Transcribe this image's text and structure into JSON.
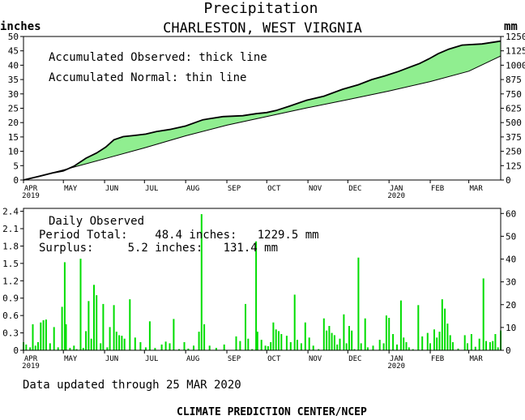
{
  "header": {
    "title": "Precipitation",
    "subtitle": "CHARLESTON, WEST VIRGNIA",
    "left_unit": "inches",
    "right_unit": "mm"
  },
  "top_panel": {
    "legend_line1": "Accumulated Observed: thick line",
    "legend_line2": "Accumulated Normal: thin line"
  },
  "bottom_panel": {
    "label_daily": "Daily Observed",
    "label_period": "Period Total:    48.4 inches:   1229.5 mm",
    "label_surplus": "Surplus:     5.2 inches:   131.4 mm"
  },
  "footer": {
    "updated": "Data updated through 25 MAR 2020",
    "credit": "CLIMATE PREDICTION CENTER/NCEP"
  },
  "colors": {
    "surplus_fill": "#90ee90",
    "deficit_fill": "#bc8f8f",
    "bars": "#00dd00",
    "axis": "#000000"
  },
  "chart_data": [
    {
      "type": "area",
      "name": "accumulated",
      "x_unit": "days since 2019-04-01",
      "ylim": [
        0,
        50
      ],
      "y_ticks": [
        0,
        5,
        10,
        15,
        20,
        25,
        30,
        35,
        40,
        45,
        50
      ],
      "y2_ticks": [
        0,
        125,
        250,
        375,
        500,
        625,
        750,
        875,
        1000,
        1125,
        1250
      ],
      "x_ticks": [
        "APR",
        "MAY",
        "JUN",
        "JUL",
        "AUG",
        "SEP",
        "OCT",
        "NOV",
        "DEC",
        "JAN",
        "FEB",
        "MAR"
      ],
      "x_tick_years": [
        "2019",
        "2020"
      ],
      "series": [
        {
          "name": "Accumulated Observed",
          "points": [
            [
              0,
              0
            ],
            [
              12,
              1.3
            ],
            [
              22,
              2.5
            ],
            [
              30,
              3.2
            ],
            [
              38,
              4.8
            ],
            [
              47,
              7.6
            ],
            [
              55,
              9.4
            ],
            [
              62,
              11.5
            ],
            [
              68,
              14.0
            ],
            [
              75,
              15.1
            ],
            [
              83,
              15.5
            ],
            [
              92,
              16.0
            ],
            [
              100,
              16.9
            ],
            [
              110,
              17.6
            ],
            [
              122,
              18.8
            ],
            [
              135,
              21.0
            ],
            [
              150,
              22.1
            ],
            [
              165,
              22.4
            ],
            [
              175,
              23.1
            ],
            [
              183,
              23.5
            ],
            [
              190,
              24.2
            ],
            [
              200,
              25.7
            ],
            [
              213,
              27.8
            ],
            [
              226,
              29.2
            ],
            [
              240,
              31.6
            ],
            [
              252,
              33.2
            ],
            [
              262,
              35.0
            ],
            [
              272,
              36.3
            ],
            [
              282,
              37.8
            ],
            [
              290,
              39.2
            ],
            [
              298,
              40.6
            ],
            [
              305,
              42.2
            ],
            [
              312,
              44.0
            ],
            [
              320,
              45.6
            ],
            [
              330,
              47.0
            ],
            [
              345,
              47.4
            ],
            [
              359,
              48.4
            ]
          ]
        },
        {
          "name": "Accumulated Normal",
          "points": [
            [
              0,
              0
            ],
            [
              30,
              3.5
            ],
            [
              61,
              7.4
            ],
            [
              91,
              11.2
            ],
            [
              122,
              15.4
            ],
            [
              153,
              19.1
            ],
            [
              183,
              22.1
            ],
            [
              214,
              25.2
            ],
            [
              244,
              28.0
            ],
            [
              275,
              31.0
            ],
            [
              306,
              34.3
            ],
            [
              335,
              37.9
            ],
            [
              359,
              43.2
            ]
          ]
        }
      ]
    },
    {
      "type": "bar",
      "name": "daily",
      "x_unit": "days since 2019-04-01",
      "ylim": [
        0,
        2.45
      ],
      "y_ticks": [
        0,
        0.3,
        0.6,
        0.9,
        1.2,
        1.5,
        1.8,
        2.1,
        2.4
      ],
      "y2_ticks": [
        0,
        10,
        20,
        30,
        40,
        50,
        60
      ],
      "x_ticks": [
        "APR",
        "MAY",
        "JUN",
        "JUL",
        "AUG",
        "SEP",
        "OCT",
        "NOV",
        "DEC",
        "JAN",
        "FEB",
        "MAR"
      ],
      "x_tick_years": [
        "2019",
        "2020"
      ],
      "bars": [
        [
          0,
          0.14
        ],
        [
          2,
          0.1
        ],
        [
          5,
          0.05
        ],
        [
          7,
          0.45
        ],
        [
          9,
          0.08
        ],
        [
          11,
          0.14
        ],
        [
          13,
          0.48
        ],
        [
          15,
          0.52
        ],
        [
          17,
          0.53
        ],
        [
          20,
          0.12
        ],
        [
          23,
          0.4
        ],
        [
          26,
          0.05
        ],
        [
          29,
          0.75
        ],
        [
          31,
          1.52
        ],
        [
          32,
          0.45
        ],
        [
          35,
          0.04
        ],
        [
          38,
          0.08
        ],
        [
          40,
          0.02
        ],
        [
          43,
          1.58
        ],
        [
          45,
          0.04
        ],
        [
          47,
          0.33
        ],
        [
          49,
          0.85
        ],
        [
          51,
          0.2
        ],
        [
          53,
          1.13
        ],
        [
          55,
          0.95
        ],
        [
          58,
          0.12
        ],
        [
          60,
          0.8
        ],
        [
          63,
          0.05
        ],
        [
          65,
          0.4
        ],
        [
          68,
          0.78
        ],
        [
          70,
          0.32
        ],
        [
          72,
          0.26
        ],
        [
          74,
          0.25
        ],
        [
          76,
          0.2
        ],
        [
          80,
          0.88
        ],
        [
          84,
          0.22
        ],
        [
          88,
          0.14
        ],
        [
          92,
          0.05
        ],
        [
          95,
          0.5
        ],
        [
          99,
          0.04
        ],
        [
          104,
          0.1
        ],
        [
          107,
          0.15
        ],
        [
          110,
          0.12
        ],
        [
          113,
          0.54
        ],
        [
          117,
          0.02
        ],
        [
          121,
          0.14
        ],
        [
          124,
          0.03
        ],
        [
          128,
          0.08
        ],
        [
          132,
          0.32
        ],
        [
          134,
          2.35
        ],
        [
          136,
          0.45
        ],
        [
          140,
          0.08
        ],
        [
          145,
          0.04
        ],
        [
          151,
          0.1
        ],
        [
          160,
          0.24
        ],
        [
          163,
          0.16
        ],
        [
          167,
          0.8
        ],
        [
          169,
          0.2
        ],
        [
          172,
          0.02
        ],
        [
          175,
          1.88
        ],
        [
          176,
          0.32
        ],
        [
          179,
          0.18
        ],
        [
          182,
          0.08
        ],
        [
          184,
          0.07
        ],
        [
          186,
          0.14
        ],
        [
          188,
          0.48
        ],
        [
          190,
          0.36
        ],
        [
          192,
          0.33
        ],
        [
          194,
          0.28
        ],
        [
          198,
          0.25
        ],
        [
          201,
          0.14
        ],
        [
          204,
          0.96
        ],
        [
          206,
          0.18
        ],
        [
          209,
          0.12
        ],
        [
          212,
          0.48
        ],
        [
          215,
          0.22
        ],
        [
          218,
          0.08
        ],
        [
          222,
          0.02
        ],
        [
          226,
          0.55
        ],
        [
          228,
          0.34
        ],
        [
          230,
          0.42
        ],
        [
          232,
          0.3
        ],
        [
          234,
          0.26
        ],
        [
          236,
          0.1
        ],
        [
          238,
          0.2
        ],
        [
          241,
          0.62
        ],
        [
          243,
          0.12
        ],
        [
          245,
          0.42
        ],
        [
          247,
          0.34
        ],
        [
          249,
          0.02
        ],
        [
          252,
          1.6
        ],
        [
          254,
          0.12
        ],
        [
          257,
          0.55
        ],
        [
          259,
          0.05
        ],
        [
          263,
          0.08
        ],
        [
          268,
          0.18
        ],
        [
          271,
          0.12
        ],
        [
          273,
          0.6
        ],
        [
          275,
          0.56
        ],
        [
          278,
          0.28
        ],
        [
          281,
          0.1
        ],
        [
          284,
          0.86
        ],
        [
          286,
          0.22
        ],
        [
          288,
          0.14
        ],
        [
          290,
          0.05
        ],
        [
          293,
          0.02
        ],
        [
          297,
          0.78
        ],
        [
          300,
          0.24
        ],
        [
          304,
          0.3
        ],
        [
          306,
          0.12
        ],
        [
          309,
          0.36
        ],
        [
          311,
          0.22
        ],
        [
          313,
          0.32
        ],
        [
          315,
          0.88
        ],
        [
          317,
          0.72
        ],
        [
          319,
          0.46
        ],
        [
          321,
          0.26
        ],
        [
          323,
          0.14
        ],
        [
          327,
          0.03
        ],
        [
          332,
          0.26
        ],
        [
          334,
          0.12
        ],
        [
          337,
          0.28
        ],
        [
          340,
          0.06
        ],
        [
          343,
          0.2
        ],
        [
          346,
          1.24
        ],
        [
          348,
          0.16
        ],
        [
          351,
          0.14
        ],
        [
          353,
          0.16
        ],
        [
          355,
          0.28
        ],
        [
          357,
          0.05
        ],
        [
          359,
          0.34
        ]
      ]
    }
  ]
}
